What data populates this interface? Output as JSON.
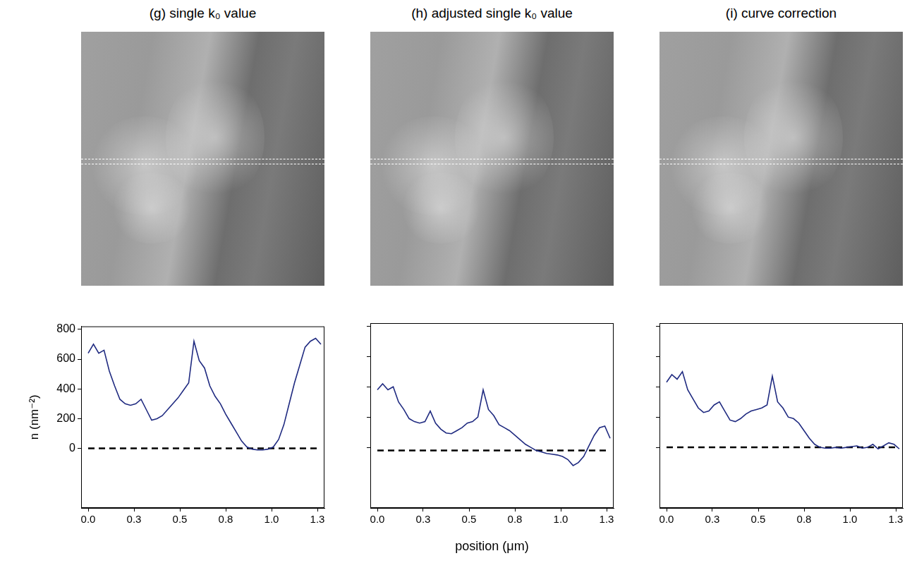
{
  "chart_data": [
    {
      "type": "line",
      "title": "(g) single k₀ value",
      "ylabel": "n (nm⁻²)",
      "grid": false,
      "xlim": [
        -0.04,
        1.34
      ],
      "xticks": [
        {
          "value": 0,
          "label": "0.0"
        },
        {
          "value": 0.26,
          "label": "0.3"
        },
        {
          "value": 0.52,
          "label": "0.5"
        },
        {
          "value": 0.78,
          "label": "0.8"
        },
        {
          "value": 1.04,
          "label": "1.0"
        },
        {
          "value": 1.3,
          "label": "1.3"
        }
      ],
      "ylim": [
        -400,
        820
      ],
      "yticks": [
        0,
        200,
        400,
        600,
        800
      ],
      "x": [
        0,
        0.03,
        0.06,
        0.09,
        0.12,
        0.15,
        0.18,
        0.21,
        0.24,
        0.27,
        0.3,
        0.33,
        0.36,
        0.39,
        0.42,
        0.45,
        0.48,
        0.51,
        0.54,
        0.57,
        0.6,
        0.63,
        0.66,
        0.69,
        0.72,
        0.75,
        0.78,
        0.81,
        0.84,
        0.87,
        0.9,
        0.93,
        0.96,
        0.99,
        1.02,
        1.05,
        1.08,
        1.11,
        1.14,
        1.17,
        1.2,
        1.23,
        1.26,
        1.29,
        1.32
      ],
      "series": [
        {
          "color": "#1f2a80",
          "line_style": "solid",
          "values": [
            640,
            700,
            640,
            660,
            520,
            420,
            330,
            300,
            290,
            300,
            330,
            260,
            190,
            200,
            220,
            260,
            300,
            340,
            390,
            440,
            720,
            590,
            540,
            420,
            350,
            300,
            230,
            170,
            110,
            50,
            10,
            -5,
            -10,
            -10,
            -5,
            10,
            60,
            160,
            300,
            440,
            560,
            680,
            720,
            740,
            700
          ]
        },
        {
          "color": "#000000",
          "line_style": "dashed",
          "x": [
            0,
            1.32
          ],
          "values": [
            0,
            0
          ]
        }
      ]
    },
    {
      "type": "line",
      "title": "(h) adjusted single k₀ value",
      "xlabel": "position (μm)",
      "grid": false,
      "tick_labels": "x",
      "xlim": [
        -0.04,
        1.34
      ],
      "xticks": [
        {
          "value": 0,
          "label": "0.0"
        },
        {
          "value": 0.26,
          "label": "0.3"
        },
        {
          "value": 0.52,
          "label": "0.5"
        },
        {
          "value": 0.78,
          "label": "0.8"
        },
        {
          "value": 1.04,
          "label": "1.0"
        },
        {
          "value": 1.3,
          "label": "1.3"
        }
      ],
      "ylim": [
        -400,
        820
      ],
      "yticks": [
        0,
        200,
        400,
        600,
        800
      ],
      "x": [
        0,
        0.03,
        0.06,
        0.09,
        0.12,
        0.15,
        0.18,
        0.21,
        0.24,
        0.27,
        0.3,
        0.33,
        0.36,
        0.39,
        0.42,
        0.45,
        0.48,
        0.51,
        0.54,
        0.57,
        0.6,
        0.63,
        0.66,
        0.69,
        0.72,
        0.75,
        0.78,
        0.81,
        0.84,
        0.87,
        0.9,
        0.93,
        0.96,
        0.99,
        1.02,
        1.05,
        1.08,
        1.11,
        1.14,
        1.17,
        1.2,
        1.23,
        1.26,
        1.29,
        1.32
      ],
      "series": [
        {
          "color": "#1f2a80",
          "line_style": "solid",
          "values": [
            380,
            420,
            380,
            400,
            300,
            250,
            190,
            170,
            160,
            170,
            240,
            160,
            120,
            95,
            90,
            110,
            130,
            160,
            170,
            200,
            380,
            250,
            210,
            150,
            130,
            110,
            80,
            50,
            20,
            0,
            -20,
            -30,
            -40,
            -45,
            -50,
            -60,
            -80,
            -120,
            -100,
            -60,
            10,
            80,
            130,
            140,
            60
          ]
        },
        {
          "color": "#000000",
          "line_style": "dashed",
          "x": [
            0,
            1.32
          ],
          "values": [
            -20,
            -20
          ]
        }
      ]
    },
    {
      "type": "line",
      "title": "(i) curve correction",
      "grid": false,
      "tick_labels": "x",
      "xlim": [
        -0.04,
        1.34
      ],
      "xticks": [
        {
          "value": 0,
          "label": "0.0"
        },
        {
          "value": 0.26,
          "label": "0.3"
        },
        {
          "value": 0.52,
          "label": "0.5"
        },
        {
          "value": 0.78,
          "label": "0.8"
        },
        {
          "value": 1.04,
          "label": "1.0"
        },
        {
          "value": 1.3,
          "label": "1.3"
        }
      ],
      "ylim": [
        -400,
        820
      ],
      "yticks": [
        0,
        200,
        400,
        600,
        800
      ],
      "x": [
        0,
        0.03,
        0.06,
        0.09,
        0.12,
        0.15,
        0.18,
        0.21,
        0.24,
        0.27,
        0.3,
        0.33,
        0.36,
        0.39,
        0.42,
        0.45,
        0.48,
        0.51,
        0.54,
        0.57,
        0.6,
        0.63,
        0.66,
        0.69,
        0.72,
        0.75,
        0.78,
        0.81,
        0.84,
        0.87,
        0.9,
        0.93,
        0.96,
        0.99,
        1.02,
        1.05,
        1.08,
        1.11,
        1.14,
        1.17,
        1.2,
        1.23,
        1.26,
        1.29,
        1.32
      ],
      "series": [
        {
          "color": "#1f2a80",
          "line_style": "solid",
          "values": [
            430,
            480,
            450,
            500,
            380,
            320,
            260,
            230,
            240,
            280,
            300,
            240,
            180,
            170,
            190,
            220,
            240,
            250,
            260,
            280,
            470,
            300,
            260,
            200,
            190,
            160,
            110,
            60,
            20,
            0,
            -5,
            -5,
            0,
            -5,
            0,
            5,
            10,
            -5,
            0,
            20,
            -10,
            10,
            30,
            20,
            -10
          ]
        },
        {
          "color": "#000000",
          "line_style": "dashed",
          "x": [
            0,
            1.32
          ],
          "values": [
            0,
            0
          ]
        }
      ]
    }
  ]
}
